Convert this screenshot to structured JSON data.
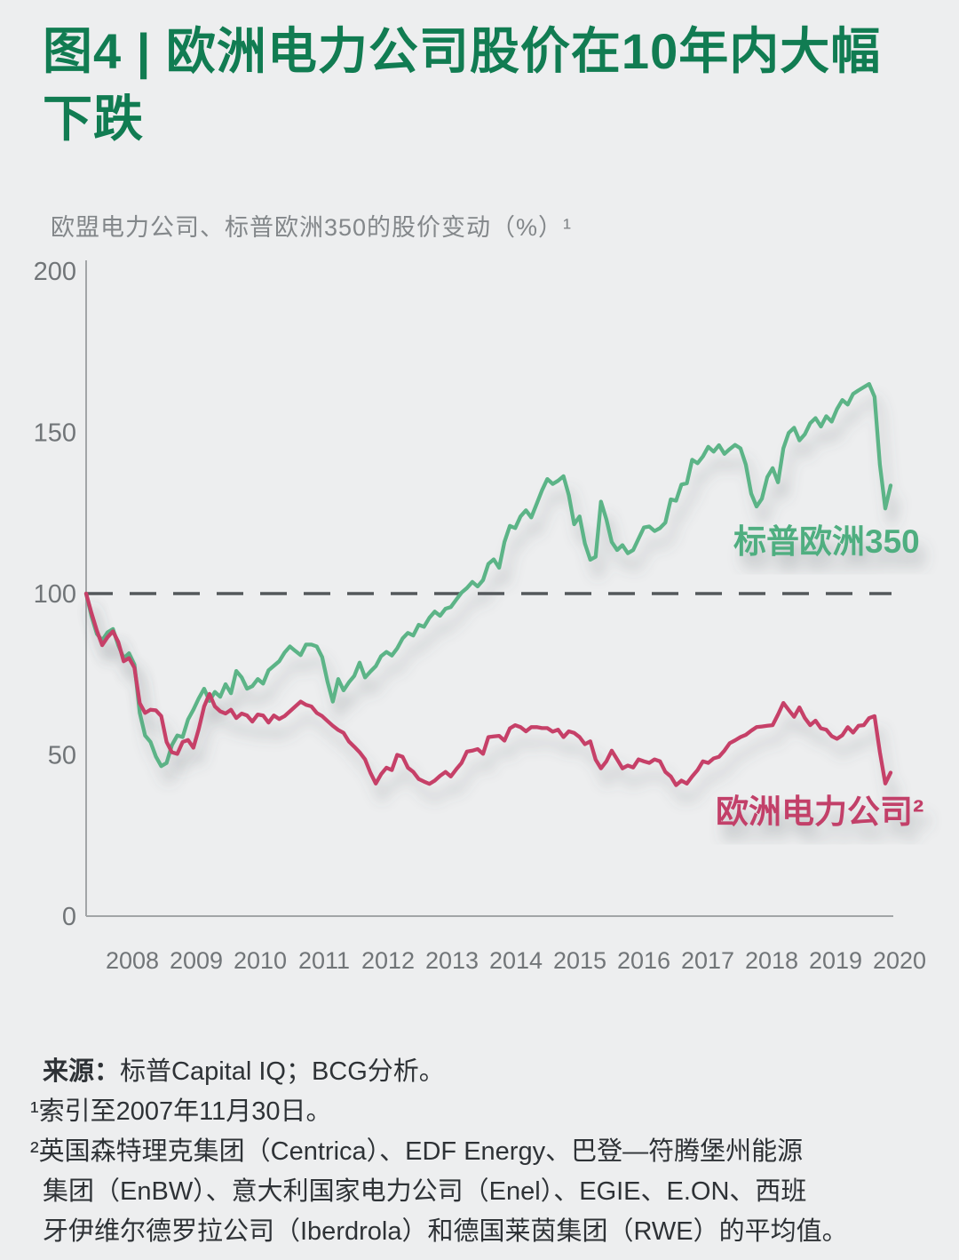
{
  "page": {
    "background": "#EDEEEF"
  },
  "header": {
    "figure_title_line1": "图4 | 欧洲电力公司股价在10年内大幅",
    "figure_title_line2": "下跌",
    "title_color": "#117C52"
  },
  "subtitle": "欧盟电力公司、标普欧洲350的股价变动（%）¹",
  "chart_data": {
    "type": "line",
    "title": "欧盟电力公司、标普欧洲350的股价变动（%）",
    "x_start": "2007-12",
    "x_end": "2020-06",
    "frequency": "monthly",
    "x_labels": [
      "2008",
      "2009",
      "2010",
      "2011",
      "2012",
      "2013",
      "2014",
      "2015",
      "2016",
      "2017",
      "2018",
      "2019",
      "2020"
    ],
    "yticks": [
      0,
      50,
      100,
      150,
      200
    ],
    "ylim": [
      0,
      200
    ],
    "baseline": 100,
    "baseline_style": "dashed",
    "grid": false,
    "legend_position": "inline-labels",
    "series": [
      {
        "name": "标普欧洲350",
        "color": "#5BB487",
        "label_color": "#4FAE80",
        "values": [
          100,
          93,
          87.5,
          85.5,
          88,
          89,
          84,
          80,
          81.5,
          78,
          63,
          56,
          54,
          49.5,
          46.5,
          47.5,
          53,
          56,
          55.5,
          61,
          64,
          67.5,
          70.5,
          66.7,
          69.5,
          68,
          71.9,
          69.1,
          76,
          74,
          70.5,
          71.3,
          73.5,
          72.1,
          76.2,
          77.6,
          79,
          81.7,
          83.6,
          82.2,
          80.9,
          84.2,
          84.2,
          83.6,
          80.3,
          72.7,
          66.5,
          73.5,
          70,
          72.5,
          74.5,
          78.6,
          74,
          75.8,
          77.5,
          80.6,
          81.9,
          80.8,
          83,
          86.1,
          87.8,
          87,
          90.3,
          89.7,
          92.5,
          94.4,
          93.1,
          95.3,
          95.8,
          98.1,
          100.3,
          101.7,
          103.6,
          102.2,
          104.2,
          109.2,
          110.6,
          108,
          116,
          121,
          120.3,
          123.9,
          125.8,
          123.6,
          127.8,
          132,
          135.5,
          134,
          135,
          136.4,
          130.5,
          121.5,
          123.9,
          115.5,
          110.5,
          111.4,
          128.5,
          123,
          116,
          113.5,
          115,
          112.5,
          113.5,
          117,
          120.5,
          120.8,
          119.4,
          120.3,
          122,
          129.2,
          128.8,
          133.8,
          134.2,
          141.5,
          140.4,
          142.5,
          145.5,
          144,
          146,
          143.3,
          144.8,
          146.1,
          145,
          140,
          131,
          127,
          129.4,
          136.1,
          138.9,
          134.5,
          145,
          149.8,
          151.4,
          147.5,
          149.4,
          152.8,
          154.4,
          151.8,
          155,
          153.3,
          157.2,
          160,
          158.6,
          161.9,
          163,
          164,
          165,
          161,
          140,
          126.4,
          133.5
        ]
      },
      {
        "name": "欧洲电力公司²",
        "color": "#C64168",
        "label_color": "#C23F69",
        "values": [
          100,
          94,
          88.5,
          84,
          86.5,
          88.3,
          85,
          79,
          80,
          77,
          66,
          63,
          64,
          63.8,
          62,
          54,
          50.8,
          50.3,
          54,
          54.6,
          52.2,
          58,
          65,
          68.9,
          65,
          63.5,
          62.8,
          64,
          61.4,
          62.8,
          62.2,
          60.3,
          62.5,
          62.2,
          60,
          62.2,
          61.1,
          62,
          63.5,
          65,
          66.5,
          65.5,
          65,
          63,
          62,
          60.5,
          59,
          57.7,
          56.8,
          54.1,
          52.5,
          50.8,
          48.6,
          44.5,
          41.1,
          44,
          46,
          45.3,
          50,
          49.4,
          46,
          44.7,
          42.5,
          41.7,
          41,
          42,
          43.5,
          44.7,
          43.3,
          45.5,
          47.5,
          51,
          51.3,
          51.8,
          50.3,
          55.5,
          55.7,
          55.9,
          54.4,
          58.2,
          59.2,
          58.6,
          57.3,
          58.6,
          58.6,
          58.3,
          58.3,
          57.2,
          57.8,
          55.5,
          57.3,
          56.8,
          55.5,
          53.3,
          54.2,
          48.5,
          45.8,
          48,
          51.3,
          48.6,
          45.8,
          46.7,
          46.1,
          48.6,
          48,
          47.5,
          48.6,
          48,
          44.7,
          43.3,
          40.6,
          42,
          41.1,
          43.3,
          45.3,
          48,
          47.5,
          48.9,
          49.4,
          51.3,
          53.6,
          54.5,
          55.5,
          56.2,
          57.5,
          58.6,
          58.8,
          59,
          59.2,
          62.5,
          66.1,
          63.9,
          61.8,
          64.7,
          61.4,
          59.2,
          60.6,
          58.2,
          57.8,
          55.8,
          55,
          56.1,
          58.6,
          56.9,
          59,
          59.2,
          61.4,
          62,
          50.8,
          41.1,
          44.5
        ]
      }
    ]
  },
  "footer": {
    "source_label": "来源：",
    "source_text": "标普Capital IQ；BCG分析。",
    "note1": "¹索引至2007年11月30日。",
    "note2_line1": "²英国森特理克集团（Centrica）、EDF Energy、巴登—符腾堡州能源",
    "note2_line2": "集团（EnBW）、意大利国家电力公司（Enel）、EGIE、E.ON、西班",
    "note2_line3": "牙伊维尔德罗拉公司（Iberdrola）和德国莱茵集团（RWE）的平均值。"
  }
}
